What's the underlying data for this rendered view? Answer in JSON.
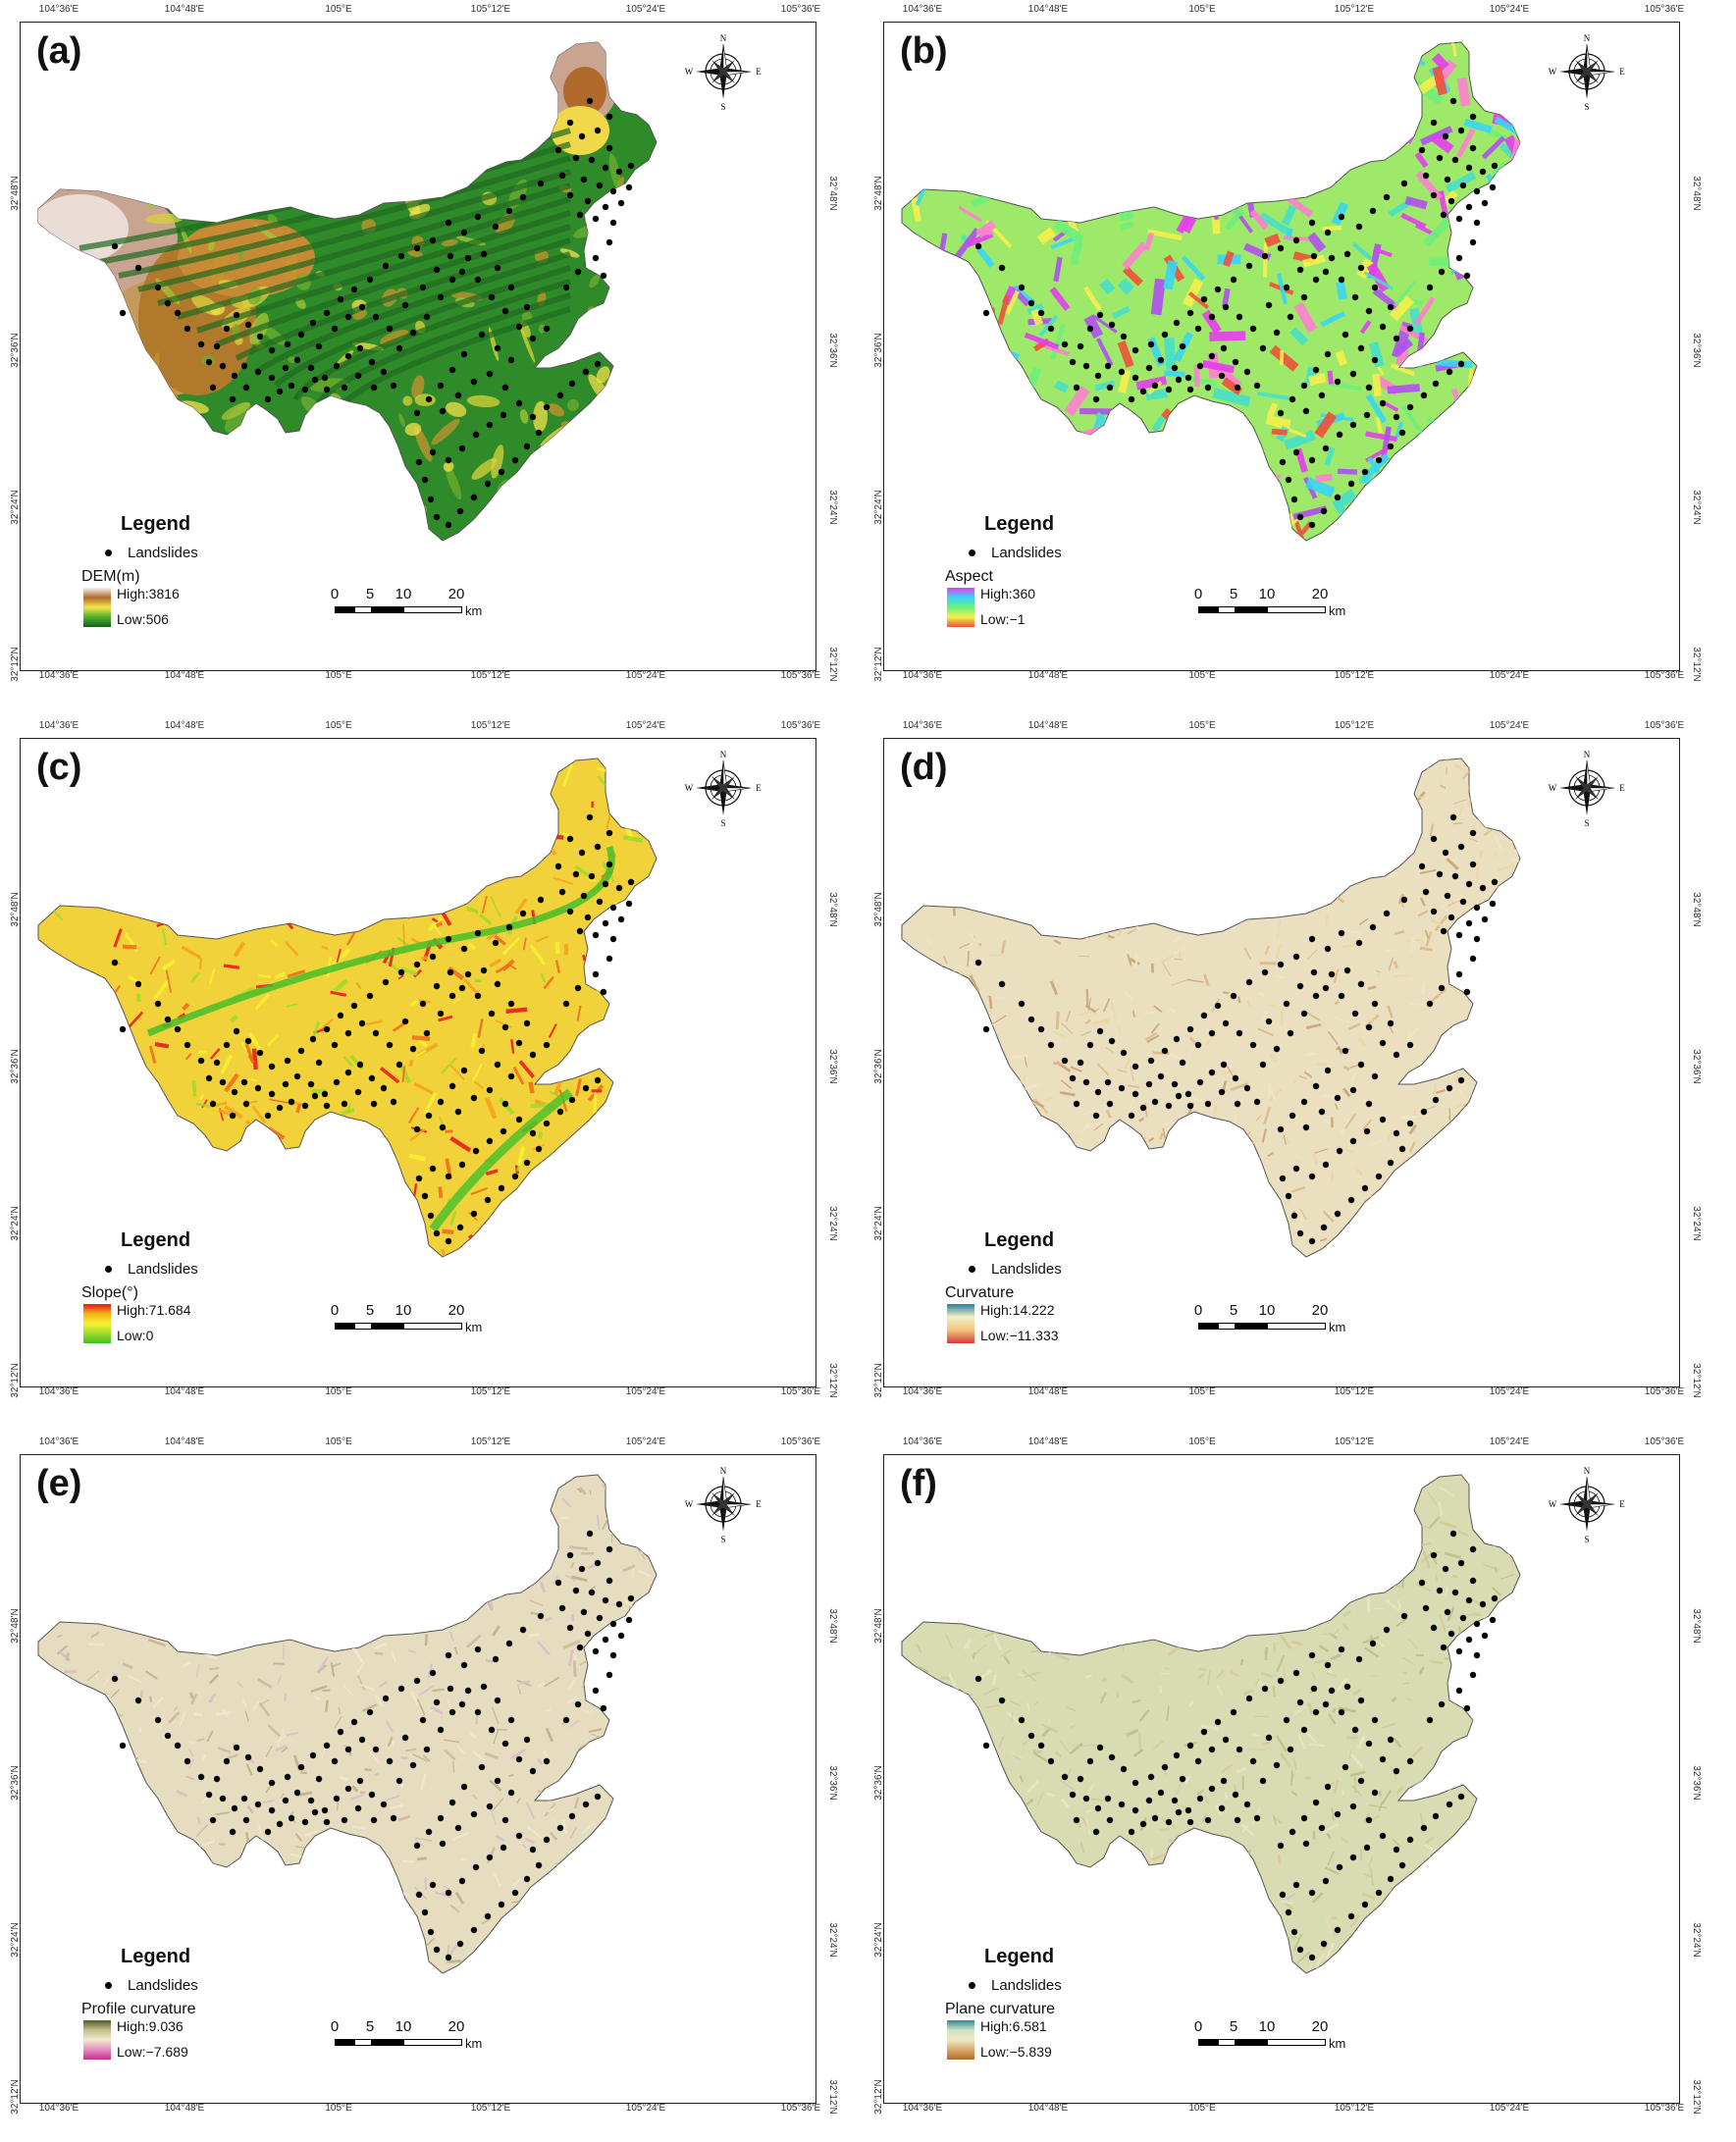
{
  "top_ticks": [
    "104°36'E",
    "104°48'E",
    "105°E",
    "105°12'E",
    "105°24'E",
    "105°36'E"
  ],
  "bottom_ticks": [
    "104°36'E",
    "104°48'E",
    "105°E",
    "105°12'E",
    "105°24'E",
    "105°36'E"
  ],
  "lat_ticks": [
    "32°48'N",
    "32°36'N",
    "32°24'N",
    "32°12'N"
  ],
  "compass": {
    "n": "N",
    "s": "S",
    "e": "E",
    "w": "W"
  },
  "legend_title": "Legend",
  "landslides_label": "Landslides",
  "scale": {
    "labels": [
      "0",
      "5",
      "10",
      "20"
    ],
    "unit": "km"
  },
  "panels": [
    {
      "id": "a",
      "label": "(a)",
      "variable": "DEM(m)",
      "high": "High:3816",
      "low": "Low:506",
      "ramp": [
        "#f2efe9",
        "#b06b2c",
        "#f5e44a",
        "#4fb02f",
        "#14601a"
      ],
      "style": "dem"
    },
    {
      "id": "b",
      "label": "(b)",
      "variable": "Aspect",
      "high": "High:360",
      "low": "Low:−1",
      "ramp": [
        "#e43df0",
        "#38d6f4",
        "#6df07a",
        "#f4f04a",
        "#f0503a"
      ],
      "style": "aspect"
    },
    {
      "id": "c",
      "label": "(c)",
      "variable": "Slope(°)",
      "high": "High:71.684",
      "low": "Low:0",
      "ramp": [
        "#e8141b",
        "#f5b414",
        "#f6f230",
        "#9edb2d",
        "#3fbf24"
      ],
      "style": "slope"
    },
    {
      "id": "d",
      "label": "(d)",
      "variable": "Curvature",
      "high": "High:14.222",
      "low": "Low:−11.333",
      "ramp": [
        "#2d7d9e",
        "#f3efc8",
        "#f0c27b",
        "#d43b3b"
      ],
      "style": "curv"
    },
    {
      "id": "e",
      "label": "(e)",
      "variable": "Profile curvature",
      "high": "High:9.036",
      "low": "Low:−7.689",
      "ramp": [
        "#555b2a",
        "#c3c08a",
        "#f2ead0",
        "#e58abf",
        "#c2338d"
      ],
      "style": "prof"
    },
    {
      "id": "f",
      "label": "(f)",
      "variable": "Plane curvature",
      "high": "High:6.581",
      "low": "Low:−5.839",
      "ramp": [
        "#2c8a9a",
        "#cfe3c4",
        "#eee8c6",
        "#d8a86a",
        "#b06d29"
      ],
      "style": "plane"
    }
  ]
}
